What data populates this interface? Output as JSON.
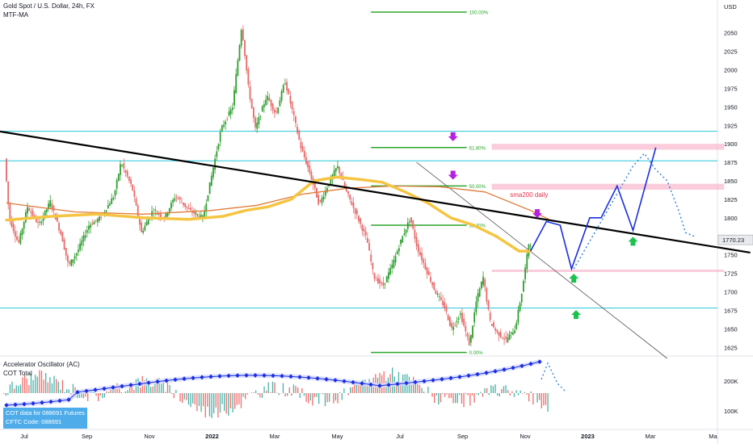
{
  "header": {
    "symbol": "Gold Spot / U.S. Dollar, 24h, FX",
    "indicator": "MTF-MA",
    "currency": "USD"
  },
  "chart_data": [
    {
      "type": "candlestick",
      "title": "Gold Spot / U.S. Dollar, 24h, FX",
      "ylabel": "USD",
      "ylim": [
        1610,
        2090
      ],
      "y_ticks": [
        2050,
        2025,
        2000,
        1975,
        1950,
        1925,
        1900,
        1875,
        1850,
        1825,
        1800,
        1775,
        1750,
        1725,
        1700,
        1675,
        1650,
        1625
      ],
      "x_ticks": [
        "Jul",
        "Sep",
        "Nov",
        "2022",
        "Mar",
        "May",
        "Jul",
        "Sep",
        "Nov",
        "2023",
        "Mar",
        "Ma"
      ],
      "last_price": "1770.23",
      "price_path": [
        [
          0,
          1880
        ],
        [
          0.2,
          1800
        ],
        [
          0.6,
          1765
        ],
        [
          1,
          1815
        ],
        [
          1.5,
          1790
        ],
        [
          2,
          1822
        ],
        [
          2.5,
          1775
        ],
        [
          2.8,
          1735
        ],
        [
          3.2,
          1755
        ],
        [
          3.7,
          1790
        ],
        [
          4.2,
          1800
        ],
        [
          4.8,
          1830
        ],
        [
          5.1,
          1875
        ],
        [
          5.6,
          1840
        ],
        [
          6,
          1780
        ],
        [
          6.5,
          1810
        ],
        [
          7,
          1800
        ],
        [
          7.5,
          1830
        ],
        [
          8.1,
          1810
        ],
        [
          8.7,
          1800
        ],
        [
          9.5,
          1920
        ],
        [
          10,
          1950
        ],
        [
          10.4,
          2060
        ],
        [
          10.7,
          1975
        ],
        [
          11,
          1920
        ],
        [
          11.5,
          1965
        ],
        [
          11.9,
          1940
        ],
        [
          12.3,
          1985
        ],
        [
          12.7,
          1935
        ],
        [
          13,
          1895
        ],
        [
          13.4,
          1860
        ],
        [
          13.8,
          1818
        ],
        [
          14.2,
          1845
        ],
        [
          14.6,
          1870
        ],
        [
          15,
          1835
        ],
        [
          15.5,
          1800
        ],
        [
          15.9,
          1770
        ],
        [
          16.2,
          1720
        ],
        [
          16.6,
          1708
        ],
        [
          17,
          1735
        ],
        [
          17.4,
          1770
        ],
        [
          17.8,
          1800
        ],
        [
          18.1,
          1760
        ],
        [
          18.5,
          1730
        ],
        [
          18.9,
          1700
        ],
        [
          19.3,
          1680
        ],
        [
          19.6,
          1650
        ],
        [
          20,
          1670
        ],
        [
          20.4,
          1628
        ],
        [
          20.7,
          1688
        ],
        [
          21,
          1720
        ],
        [
          21.3,
          1660
        ],
        [
          21.6,
          1645
        ],
        [
          22,
          1635
        ],
        [
          22.4,
          1650
        ],
        [
          22.7,
          1700
        ],
        [
          23,
          1765
        ]
      ],
      "sma200_path": [
        [
          0,
          1797
        ],
        [
          2,
          1802
        ],
        [
          4,
          1805
        ],
        [
          6,
          1800
        ],
        [
          8,
          1798
        ],
        [
          9.5,
          1802
        ],
        [
          10.5,
          1810
        ],
        [
          11.5,
          1815
        ],
        [
          12.5,
          1825
        ],
        [
          13.5,
          1850
        ],
        [
          14.5,
          1855
        ],
        [
          15.5,
          1852
        ],
        [
          16.5,
          1848
        ],
        [
          17.5,
          1835
        ],
        [
          18.5,
          1820
        ],
        [
          19.5,
          1800
        ],
        [
          20.5,
          1790
        ],
        [
          21.5,
          1775
        ],
        [
          22.5,
          1755
        ],
        [
          23,
          1755
        ]
      ],
      "ma_slow_path": [
        [
          0,
          1820
        ],
        [
          3,
          1808
        ],
        [
          6,
          1805
        ],
        [
          9,
          1810
        ],
        [
          11,
          1817
        ],
        [
          13,
          1832
        ],
        [
          15,
          1840
        ],
        [
          17,
          1843
        ],
        [
          19,
          1842
        ],
        [
          21,
          1835
        ],
        [
          23,
          1810
        ],
        [
          24,
          1795
        ]
      ],
      "fibonacci": {
        "start_price": 1618,
        "end_price": 2078,
        "levels": [
          {
            "label": "100.00%",
            "price": 2078
          },
          {
            "label": "61.80%",
            "price": 1895
          },
          {
            "label": "50.00%",
            "price": 1843
          },
          {
            "label": "38.20%",
            "price": 1790
          },
          {
            "label": "0.00%",
            "price": 1618
          }
        ]
      },
      "horizontal_levels": [
        1917,
        1877,
        1678
      ],
      "trendline": {
        "from": [
          0,
          1917
        ],
        "to": [
          33,
          1753
        ]
      },
      "thin_trendline": {
        "from": [
          18,
          1875
        ],
        "to": [
          29,
          1610
        ]
      },
      "pink_zones": [
        {
          "top": 1900,
          "bottom": 1892
        },
        {
          "top": 1846,
          "bottom": 1838
        },
        {
          "top": 1730,
          "bottom": 1727
        }
      ],
      "annotations": [
        "sma200 daily"
      ],
      "projection_solid": [
        [
          23,
          1755
        ],
        [
          23.7,
          1795
        ],
        [
          24.3,
          1790
        ],
        [
          24.8,
          1731
        ],
        [
          25.6,
          1800
        ],
        [
          26.1,
          1800
        ],
        [
          26.8,
          1843
        ],
        [
          27.5,
          1783
        ],
        [
          28.5,
          1895
        ]
      ],
      "projection_dotted": [
        [
          24.9,
          1731
        ],
        [
          26.1,
          1795
        ],
        [
          27.5,
          1870
        ],
        [
          28,
          1887
        ],
        [
          28.5,
          1865
        ],
        [
          29,
          1850
        ],
        [
          29.5,
          1810
        ],
        [
          29.8,
          1780
        ],
        [
          30.2,
          1775
        ]
      ],
      "signals": [
        {
          "kind": "down",
          "color": "#b620e0",
          "x": 23.3,
          "price": 1804
        },
        {
          "kind": "down",
          "color": "#b620e0",
          "x": 19.6,
          "price": 1908
        },
        {
          "kind": "down",
          "color": "#b620e0",
          "x": 19.6,
          "price": 1856
        },
        {
          "kind": "up",
          "color": "#1bc24d",
          "x": 24.9,
          "price": 1720
        },
        {
          "kind": "up",
          "color": "#1bc24d",
          "x": 25,
          "price": 1671
        },
        {
          "kind": "up",
          "color": "#1bc24d",
          "x": 27.5,
          "price": 1770
        }
      ]
    },
    {
      "type": "bar",
      "title": "Accelerator Oscillator (AC)",
      "series": [
        {
          "name": "COT Total"
        }
      ],
      "y_ticks": [
        "200K",
        "100K"
      ]
    }
  ],
  "cot_box": {
    "line1": "COT data for 088691 Futures",
    "line2": "CFTC Code: 088691"
  },
  "colors": {
    "candle_up": "#26a69a",
    "candle_down": "#ef5350",
    "candle_up_main": "#2e9e2e",
    "candle_down_main": "#e86868",
    "sma200": "#f5c542",
    "ma_slow": "#e07b39",
    "fib": "#2ba62b",
    "trendline": "#000000",
    "levels": "#26c6da",
    "projection": "#1a2ee0",
    "pink": "#f8bbd0"
  }
}
